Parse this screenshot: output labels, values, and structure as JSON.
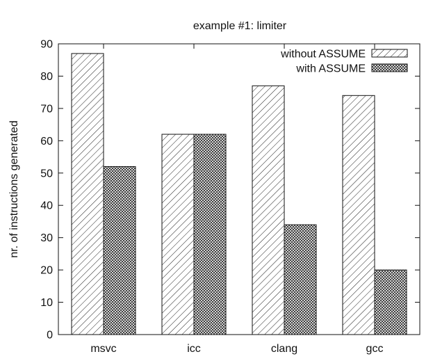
{
  "chart_data": {
    "type": "bar",
    "title": "example #1: limiter",
    "xlabel": "",
    "ylabel": "nr. of instructions generated",
    "categories": [
      "msvc",
      "icc",
      "clang",
      "gcc"
    ],
    "series": [
      {
        "name": "without ASSUME",
        "pattern": "diagonal-hatch",
        "values": [
          87,
          62,
          77,
          74
        ]
      },
      {
        "name": "with ASSUME",
        "pattern": "crosshatch",
        "values": [
          52,
          62,
          34,
          20
        ]
      }
    ],
    "ylim": [
      0,
      90
    ],
    "yticks": [
      0,
      10,
      20,
      30,
      40,
      50,
      60,
      70,
      80,
      90
    ],
    "grid": false,
    "legend_position": "top-right",
    "colors": {
      "ink": "#111111",
      "background": "#ffffff"
    }
  }
}
